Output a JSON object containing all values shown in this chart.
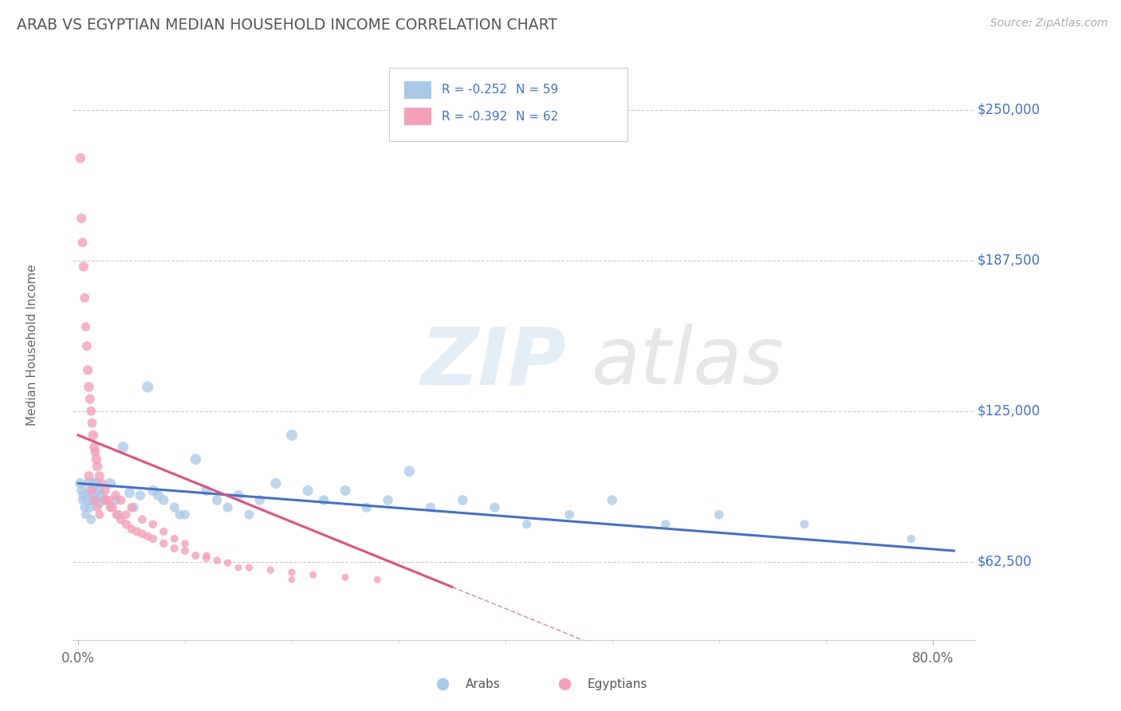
{
  "title": "ARAB VS EGYPTIAN MEDIAN HOUSEHOLD INCOME CORRELATION CHART",
  "source": "Source: ZipAtlas.com",
  "ylabel": "Median Household Income",
  "ytick_labels": [
    "$62,500",
    "$125,000",
    "$187,500",
    "$250,000"
  ],
  "ytick_values": [
    62500,
    125000,
    187500,
    250000
  ],
  "ymin": 30000,
  "ymax": 275000,
  "xmin": -0.005,
  "xmax": 0.84,
  "legend_arab_r": "R = -0.252",
  "legend_arab_n": "N = 59",
  "legend_egyp_r": "R = -0.392",
  "legend_egyp_n": "N = 62",
  "arab_color": "#a8c8e8",
  "egyp_color": "#f4a0b8",
  "arab_line_color": "#4472c4",
  "egyp_line_color": "#e05080",
  "egyp_dashed_color": "#d0a0b0",
  "title_color": "#555555",
  "ytick_color": "#4472c4",
  "arab_scatter_x": [
    0.002,
    0.003,
    0.004,
    0.005,
    0.006,
    0.007,
    0.008,
    0.009,
    0.01,
    0.011,
    0.012,
    0.013,
    0.014,
    0.015,
    0.016,
    0.017,
    0.018,
    0.02,
    0.022,
    0.025,
    0.03,
    0.035,
    0.038,
    0.042,
    0.048,
    0.052,
    0.058,
    0.065,
    0.07,
    0.075,
    0.08,
    0.09,
    0.095,
    0.1,
    0.11,
    0.12,
    0.13,
    0.14,
    0.15,
    0.16,
    0.17,
    0.185,
    0.2,
    0.215,
    0.23,
    0.25,
    0.27,
    0.29,
    0.31,
    0.33,
    0.36,
    0.39,
    0.42,
    0.46,
    0.5,
    0.55,
    0.6,
    0.68,
    0.78
  ],
  "arab_scatter_y": [
    95000,
    92000,
    88000,
    90000,
    85000,
    82000,
    91000,
    88000,
    95000,
    85000,
    80000,
    88000,
    95000,
    91000,
    88000,
    95000,
    92000,
    87000,
    90000,
    88000,
    95000,
    88000,
    82000,
    110000,
    91000,
    85000,
    90000,
    135000,
    92000,
    90000,
    88000,
    85000,
    82000,
    82000,
    105000,
    92000,
    88000,
    85000,
    90000,
    82000,
    88000,
    95000,
    115000,
    92000,
    88000,
    92000,
    85000,
    88000,
    100000,
    85000,
    88000,
    85000,
    78000,
    82000,
    88000,
    78000,
    82000,
    78000,
    72000
  ],
  "arab_scatter_size": [
    60,
    50,
    45,
    55,
    48,
    42,
    50,
    55,
    60,
    55,
    48,
    52,
    60,
    58,
    55,
    62,
    58,
    55,
    52,
    58,
    62,
    55,
    48,
    65,
    58,
    52,
    55,
    70,
    60,
    58,
    55,
    52,
    48,
    48,
    65,
    60,
    55,
    52,
    58,
    50,
    55,
    62,
    68,
    60,
    55,
    60,
    52,
    55,
    62,
    52,
    55,
    52,
    45,
    48,
    55,
    45,
    48,
    42,
    38
  ],
  "egyp_scatter_x": [
    0.002,
    0.003,
    0.004,
    0.005,
    0.006,
    0.007,
    0.008,
    0.009,
    0.01,
    0.011,
    0.012,
    0.013,
    0.014,
    0.015,
    0.016,
    0.017,
    0.018,
    0.02,
    0.022,
    0.025,
    0.028,
    0.032,
    0.036,
    0.04,
    0.045,
    0.05,
    0.055,
    0.06,
    0.065,
    0.07,
    0.08,
    0.09,
    0.1,
    0.11,
    0.12,
    0.13,
    0.14,
    0.16,
    0.18,
    0.2,
    0.22,
    0.25,
    0.28,
    0.01,
    0.012,
    0.015,
    0.018,
    0.02,
    0.025,
    0.03,
    0.035,
    0.04,
    0.045,
    0.05,
    0.06,
    0.07,
    0.08,
    0.09,
    0.1,
    0.12,
    0.15,
    0.2
  ],
  "egyp_scatter_y": [
    230000,
    205000,
    195000,
    185000,
    172000,
    160000,
    152000,
    142000,
    135000,
    130000,
    125000,
    120000,
    115000,
    110000,
    108000,
    105000,
    102000,
    98000,
    95000,
    92000,
    88000,
    85000,
    82000,
    80000,
    78000,
    76000,
    75000,
    74000,
    73000,
    72000,
    70000,
    68000,
    67000,
    65000,
    64000,
    63000,
    62000,
    60000,
    59000,
    58000,
    57000,
    56000,
    55000,
    98000,
    92000,
    88000,
    85000,
    82000,
    88000,
    85000,
    90000,
    88000,
    82000,
    85000,
    80000,
    78000,
    75000,
    72000,
    70000,
    65000,
    60000,
    55000
  ],
  "egyp_scatter_size": [
    55,
    50,
    48,
    52,
    48,
    45,
    48,
    52,
    55,
    52,
    48,
    50,
    55,
    52,
    50,
    55,
    52,
    50,
    48,
    52,
    50,
    48,
    45,
    48,
    45,
    42,
    42,
    40,
    40,
    38,
    38,
    36,
    35,
    34,
    33,
    32,
    31,
    30,
    30,
    29,
    28,
    28,
    27,
    52,
    48,
    46,
    44,
    42,
    46,
    44,
    48,
    46,
    42,
    44,
    40,
    38,
    36,
    34,
    32,
    29,
    27,
    25
  ]
}
